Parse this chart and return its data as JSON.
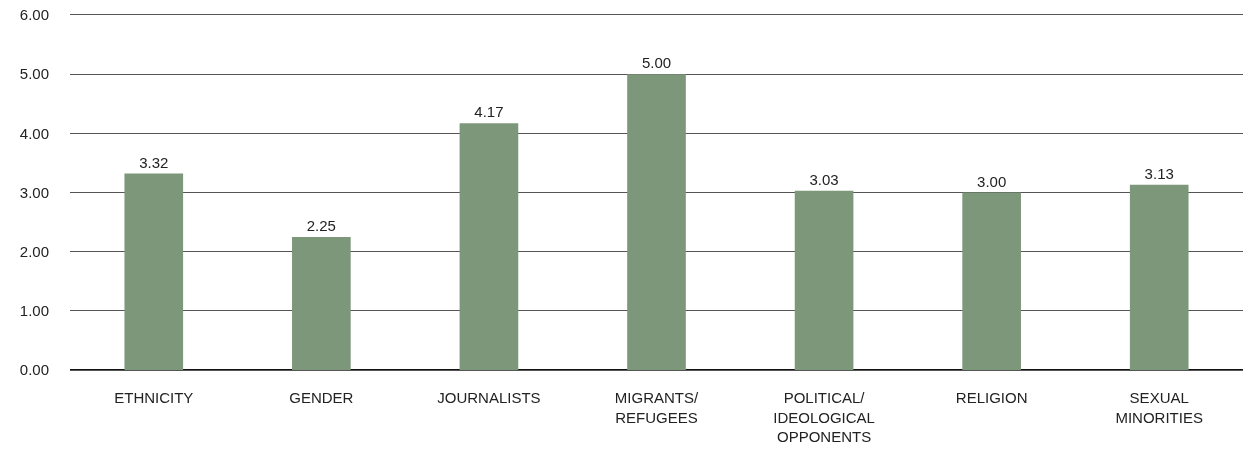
{
  "chart_data": {
    "type": "bar",
    "categories": [
      "ETHNICITY",
      "GENDER",
      "JOURNALISTS",
      "MIGRANTS/\nREFUGEES",
      "POLITICAL/\nIDEOLOGICAL\nOPPONENTS",
      "RELIGION",
      "SEXUAL\nMINORITIES"
    ],
    "values": [
      3.32,
      2.25,
      4.17,
      5.0,
      3.03,
      3.0,
      3.13
    ],
    "value_labels": [
      "3.32",
      "2.25",
      "4.17",
      "5.00",
      "3.03",
      "3.00",
      "3.13"
    ],
    "color": "#7d977a",
    "ylim": [
      0,
      6
    ],
    "yticks": [
      {
        "value": 0,
        "label": "0.00"
      },
      {
        "value": 1,
        "label": "1.00"
      },
      {
        "value": 2,
        "label": "2.00"
      },
      {
        "value": 3,
        "label": "3.00"
      },
      {
        "value": 4,
        "label": "4.00"
      },
      {
        "value": 5,
        "label": "5.00"
      },
      {
        "value": 6,
        "label": "6.00"
      }
    ],
    "grid": "y"
  }
}
